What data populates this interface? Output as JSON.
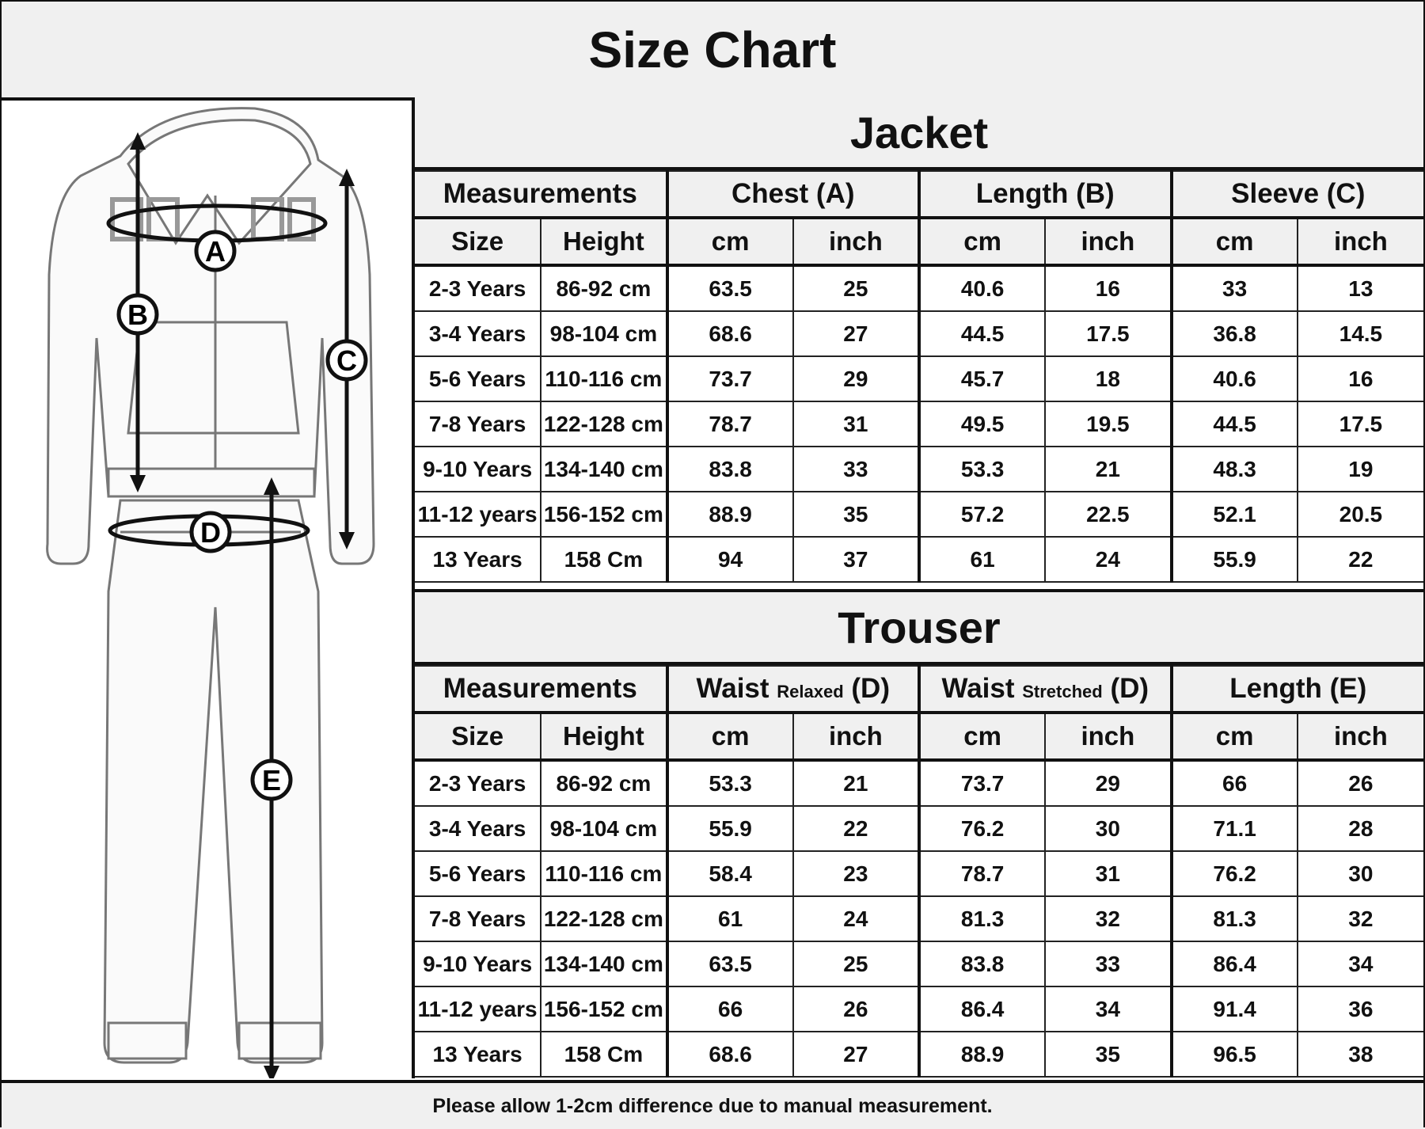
{
  "title": "Size Chart",
  "diagram_labels": [
    "A",
    "B",
    "C",
    "D",
    "E"
  ],
  "jacket": {
    "title": "Jacket",
    "groups": [
      {
        "label": "Measurements",
        "qualifier": "",
        "suffix": ""
      },
      {
        "label": "Chest (A)",
        "qualifier": "",
        "suffix": ""
      },
      {
        "label": "Length (B)",
        "qualifier": "",
        "suffix": ""
      },
      {
        "label": "Sleeve (C)",
        "qualifier": "",
        "suffix": ""
      }
    ],
    "subheaders": [
      "Size",
      "Height",
      "cm",
      "inch",
      "cm",
      "inch",
      "cm",
      "inch"
    ],
    "rows": [
      [
        "2-3 Years",
        "86-92 cm",
        "63.5",
        "25",
        "40.6",
        "16",
        "33",
        "13"
      ],
      [
        "3-4 Years",
        "98-104 cm",
        "68.6",
        "27",
        "44.5",
        "17.5",
        "36.8",
        "14.5"
      ],
      [
        "5-6 Years",
        "110-116 cm",
        "73.7",
        "29",
        "45.7",
        "18",
        "40.6",
        "16"
      ],
      [
        "7-8 Years",
        "122-128 cm",
        "78.7",
        "31",
        "49.5",
        "19.5",
        "44.5",
        "17.5"
      ],
      [
        "9-10 Years",
        "134-140 cm",
        "83.8",
        "33",
        "53.3",
        "21",
        "48.3",
        "19"
      ],
      [
        "11-12 years",
        "156-152 cm",
        "88.9",
        "35",
        "57.2",
        "22.5",
        "52.1",
        "20.5"
      ],
      [
        "13 Years",
        "158 Cm",
        "94",
        "37",
        "61",
        "24",
        "55.9",
        "22"
      ]
    ]
  },
  "trouser": {
    "title": "Trouser",
    "groups": [
      {
        "label": "Measurements",
        "qualifier": "",
        "suffix": ""
      },
      {
        "label": "Waist",
        "qualifier": "Relaxed",
        "suffix": "(D)"
      },
      {
        "label": "Waist",
        "qualifier": "Stretched",
        "suffix": "(D)"
      },
      {
        "label": "Length (E)",
        "qualifier": "",
        "suffix": ""
      }
    ],
    "subheaders": [
      "Size",
      "Height",
      "cm",
      "inch",
      "cm",
      "inch",
      "cm",
      "inch"
    ],
    "rows": [
      [
        "2-3 Years",
        "86-92 cm",
        "53.3",
        "21",
        "73.7",
        "29",
        "66",
        "26"
      ],
      [
        "3-4 Years",
        "98-104 cm",
        "55.9",
        "22",
        "76.2",
        "30",
        "71.1",
        "28"
      ],
      [
        "5-6 Years",
        "110-116 cm",
        "58.4",
        "23",
        "78.7",
        "31",
        "76.2",
        "30"
      ],
      [
        "7-8 Years",
        "122-128 cm",
        "61",
        "24",
        "81.3",
        "32",
        "81.3",
        "32"
      ],
      [
        "9-10 Years",
        "134-140 cm",
        "63.5",
        "25",
        "83.8",
        "33",
        "86.4",
        "34"
      ],
      [
        "11-12 years",
        "156-152 cm",
        "66",
        "26",
        "86.4",
        "34",
        "91.4",
        "36"
      ],
      [
        "13 Years",
        "158 Cm",
        "68.6",
        "27",
        "88.9",
        "35",
        "96.5",
        "38"
      ]
    ]
  },
  "footer": "Please allow 1-2cm difference due to manual measurement."
}
